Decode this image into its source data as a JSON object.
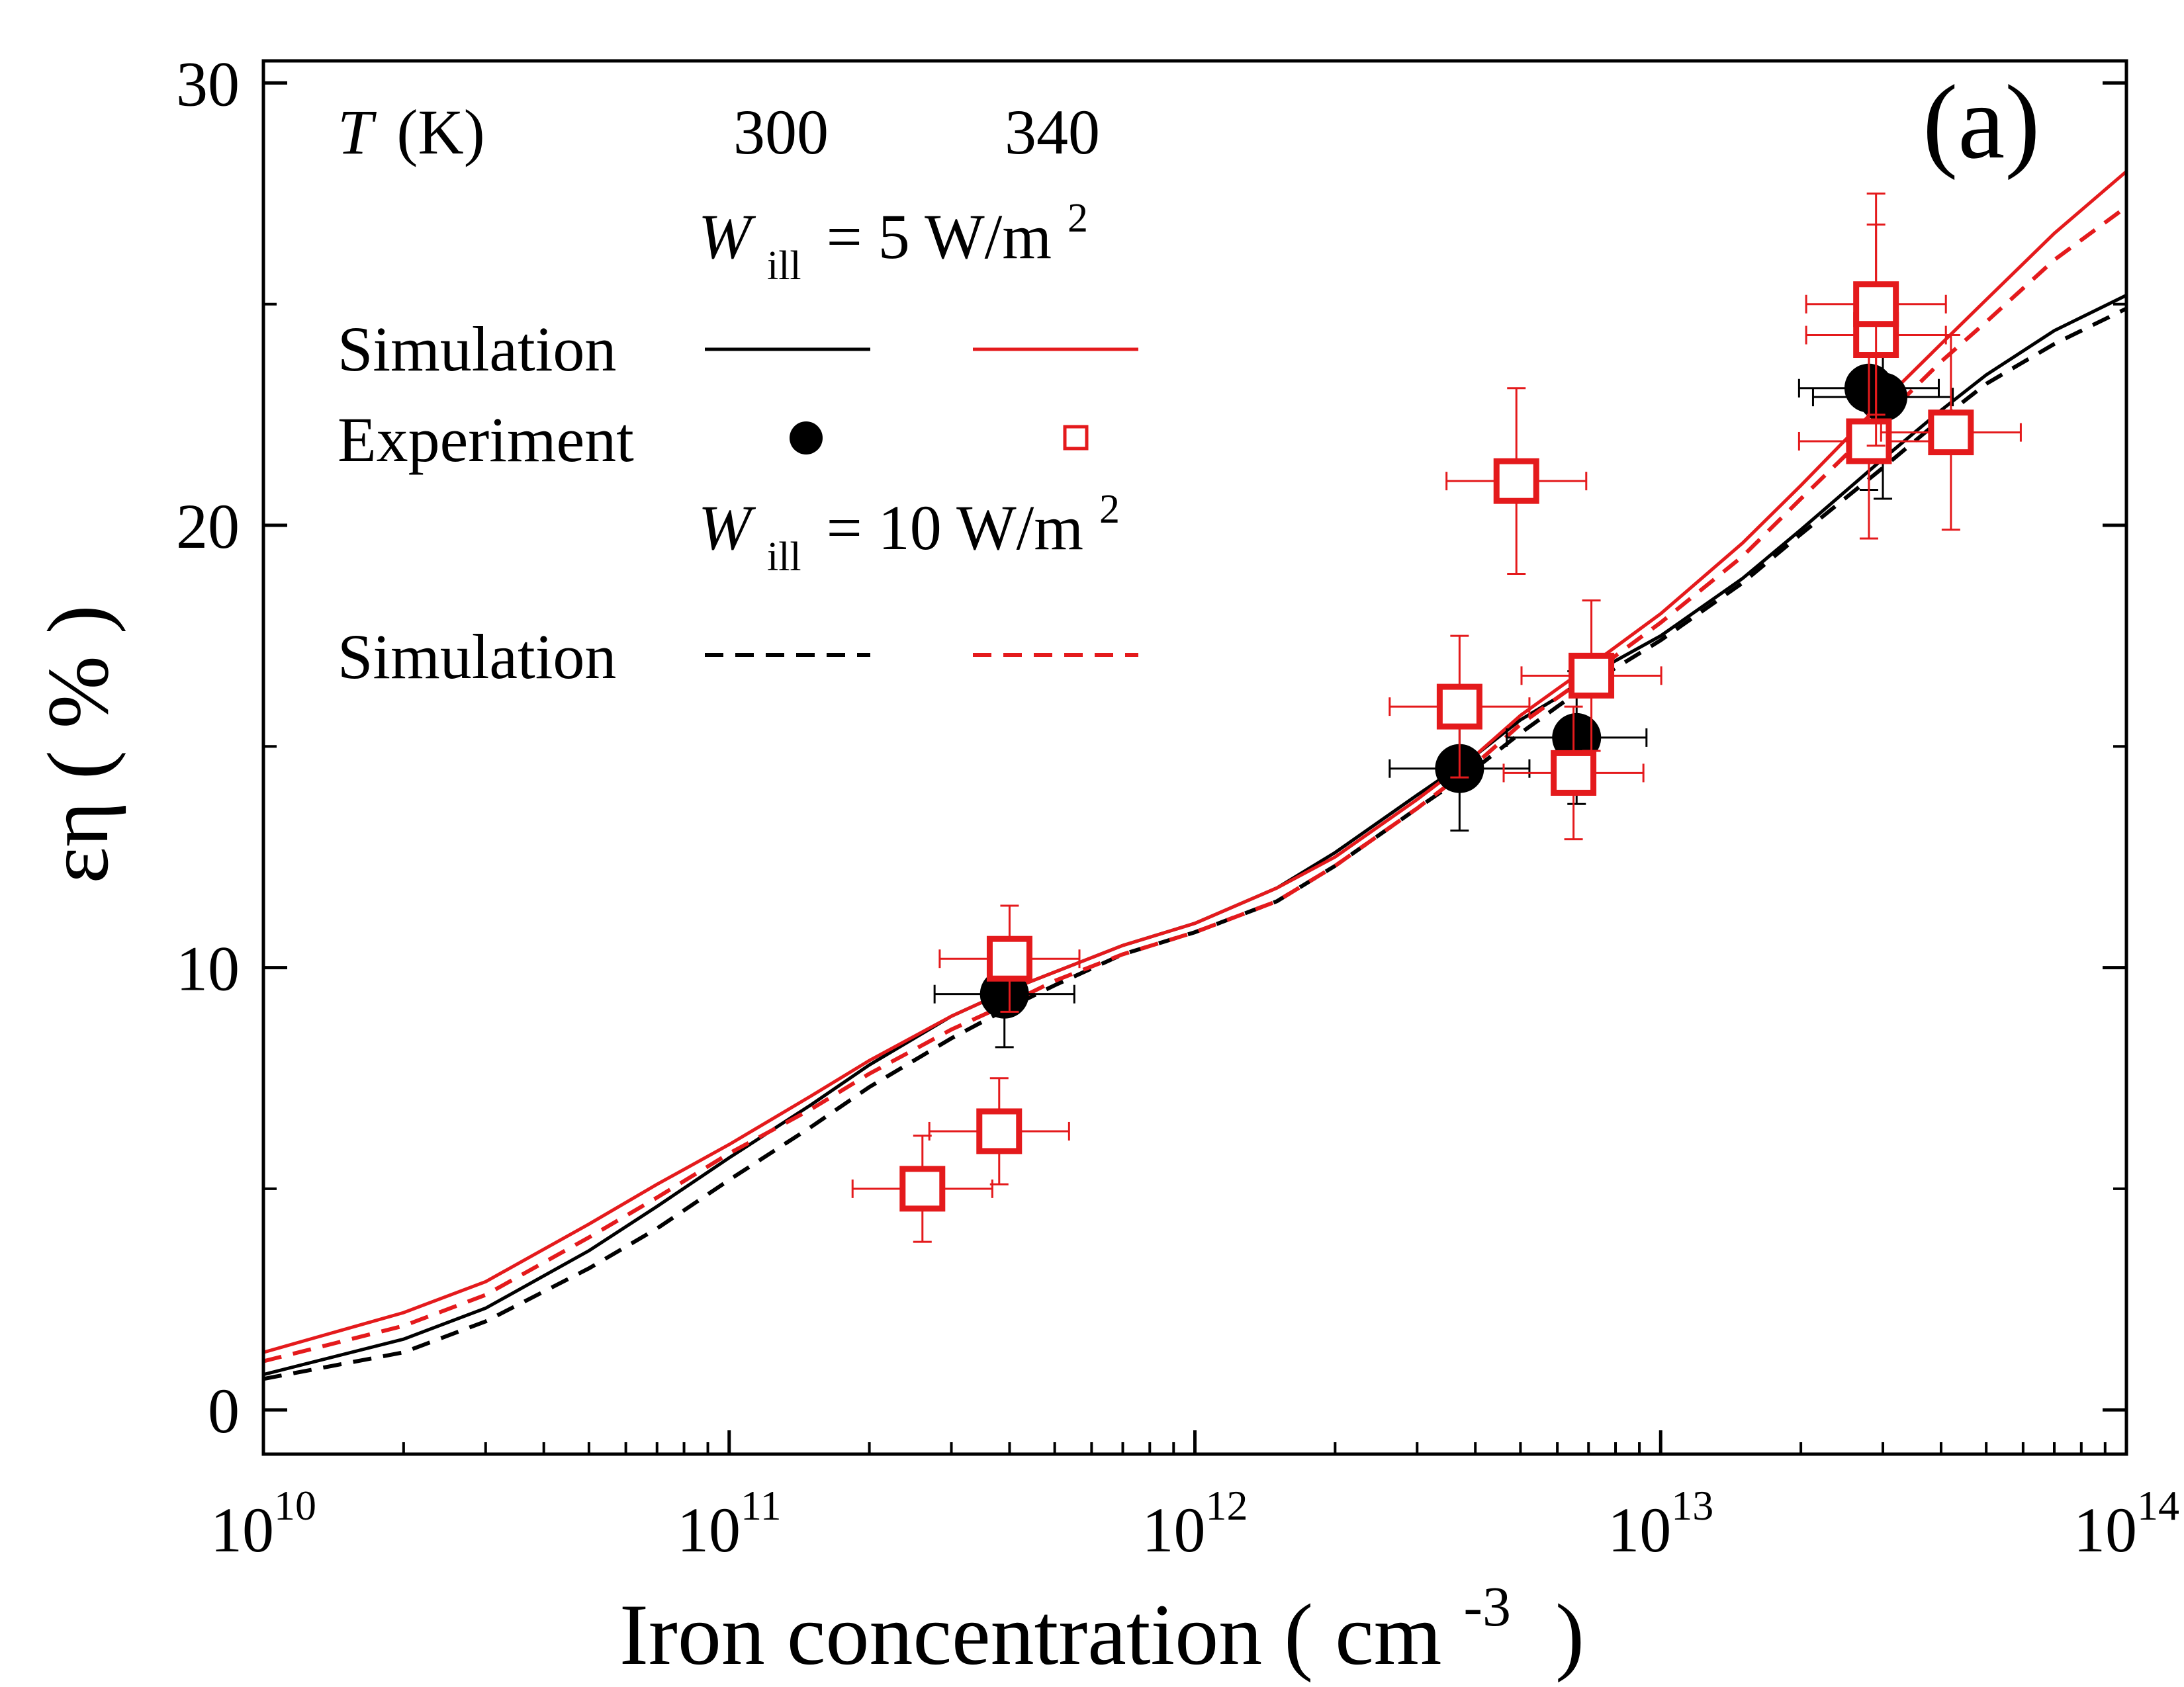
{
  "chart_data": {
    "type": "scatter",
    "panel_label": "(a)",
    "xlabel": "Iron concentration ( cm",
    "xlabel_exponent": "-3",
    "xlabel_close": ")",
    "ylabel": "εη ( % )",
    "x_scale": "log",
    "xlim": [
      10000000000.0,
      100000000000000.0
    ],
    "ylim": [
      -1,
      30.5
    ],
    "grid": false,
    "x_ticks": [
      {
        "value": 10000000000.0,
        "base": "10",
        "exp": "10"
      },
      {
        "value": 100000000000.0,
        "base": "10",
        "exp": "11"
      },
      {
        "value": 1000000000000.0,
        "base": "10",
        "exp": "12"
      },
      {
        "value": 10000000000000.0,
        "base": "10",
        "exp": "13"
      },
      {
        "value": 100000000000000.0,
        "base": "10",
        "exp": "14"
      }
    ],
    "y_ticks": [
      {
        "value": 0,
        "label": "0"
      },
      {
        "value": 10,
        "label": "10"
      },
      {
        "value": 20,
        "label": "20"
      },
      {
        "value": 30,
        "label": "30"
      }
    ],
    "legend": {
      "placement": "top-left",
      "t_label": "T",
      "t_unit": "(K)",
      "t_values": [
        "300",
        "340"
      ],
      "w5_symbol": "W",
      "w5_sub": "ill",
      "w5_text": "= 5 W/m",
      "w5_sup": "2",
      "w10_symbol": "W",
      "w10_sub": "ill",
      "w10_text": "= 10 W/m",
      "w10_sup": "2",
      "sim_label_1": "Simulation",
      "exp_label": "Experiment",
      "sim_label_2": "Simulation"
    },
    "colors": {
      "T300": "#000000",
      "T340": "#e41a1c"
    },
    "series": [
      {
        "T": 300,
        "W": 5,
        "kind": "simulation",
        "style": "solid",
        "color": "#000000",
        "x": [
          10000000000.0,
          20000000000.0,
          30000000000.0,
          50000000000.0,
          70000000000.0,
          100000000000.0,
          150000000000.0,
          200000000000.0,
          300000000000.0,
          400000000000.0,
          500000000000.0,
          700000000000.0,
          1000000000000.0,
          1500000000000.0,
          2000000000000.0,
          3000000000000.0,
          4000000000000.0,
          5000000000000.0,
          6000000000000.0,
          7000000000000.0,
          10000000000000.0,
          15000000000000.0,
          20000000000000.0,
          30000000000000.0,
          40000000000000.0,
          50000000000000.0,
          70000000000000.0,
          100000000000000.0
        ],
        "y": [
          0.8,
          1.6,
          2.3,
          3.6,
          4.6,
          5.7,
          6.9,
          7.8,
          8.9,
          9.5,
          9.9,
          10.5,
          11.0,
          11.8,
          12.6,
          13.9,
          14.8,
          15.6,
          16.1,
          16.6,
          17.5,
          18.8,
          19.9,
          21.5,
          22.6,
          23.4,
          24.4,
          25.2
        ]
      },
      {
        "T": 340,
        "W": 5,
        "kind": "simulation",
        "style": "solid",
        "color": "#e41a1c",
        "x": [
          10000000000.0,
          20000000000.0,
          30000000000.0,
          50000000000.0,
          70000000000.0,
          100000000000.0,
          150000000000.0,
          200000000000.0,
          300000000000.0,
          400000000000.0,
          500000000000.0,
          700000000000.0,
          1000000000000.0,
          1500000000000.0,
          2000000000000.0,
          3000000000000.0,
          4000000000000.0,
          5000000000000.0,
          6000000000000.0,
          7000000000000.0,
          10000000000000.0,
          15000000000000.0,
          20000000000000.0,
          30000000000000.0,
          40000000000000.0,
          50000000000000.0,
          70000000000000.0,
          100000000000000.0
        ],
        "y": [
          1.3,
          2.2,
          2.9,
          4.2,
          5.1,
          6.0,
          7.1,
          7.9,
          8.9,
          9.5,
          9.9,
          10.5,
          11.0,
          11.8,
          12.5,
          13.8,
          14.8,
          15.7,
          16.3,
          16.8,
          18.0,
          19.6,
          20.9,
          22.8,
          24.1,
          25.1,
          26.6,
          28.0
        ]
      },
      {
        "T": 300,
        "W": 10,
        "kind": "simulation",
        "style": "dashed",
        "color": "#000000",
        "x": [
          10000000000.0,
          20000000000.0,
          30000000000.0,
          50000000000.0,
          70000000000.0,
          100000000000.0,
          150000000000.0,
          200000000000.0,
          300000000000.0,
          400000000000.0,
          500000000000.0,
          700000000000.0,
          1000000000000.0,
          1500000000000.0,
          2000000000000.0,
          3000000000000.0,
          4000000000000.0,
          5000000000000.0,
          6000000000000.0,
          7000000000000.0,
          10000000000000.0,
          15000000000000.0,
          20000000000000.0,
          30000000000000.0,
          40000000000000.0,
          50000000000000.0,
          70000000000000.0,
          100000000000000.0
        ],
        "y": [
          0.7,
          1.3,
          2.0,
          3.2,
          4.1,
          5.2,
          6.4,
          7.3,
          8.4,
          9.1,
          9.6,
          10.3,
          10.8,
          11.5,
          12.3,
          13.6,
          14.5,
          15.3,
          15.9,
          16.4,
          17.4,
          18.7,
          19.8,
          21.3,
          22.4,
          23.2,
          24.1,
          24.9
        ]
      },
      {
        "T": 340,
        "W": 10,
        "kind": "simulation",
        "style": "dashed",
        "color": "#e41a1c",
        "x": [
          10000000000.0,
          20000000000.0,
          30000000000.0,
          50000000000.0,
          70000000000.0,
          100000000000.0,
          150000000000.0,
          200000000000.0,
          300000000000.0,
          400000000000.0,
          500000000000.0,
          700000000000.0,
          1000000000000.0,
          1500000000000.0,
          2000000000000.0,
          3000000000000.0,
          4000000000000.0,
          5000000000000.0,
          6000000000000.0,
          7000000000000.0,
          10000000000000.0,
          15000000000000.0,
          20000000000000.0,
          30000000000000.0,
          40000000000000.0,
          50000000000000.0,
          70000000000000.0,
          100000000000000.0
        ],
        "y": [
          1.1,
          1.9,
          2.6,
          3.9,
          4.8,
          5.8,
          6.8,
          7.6,
          8.6,
          9.2,
          9.7,
          10.3,
          10.8,
          11.5,
          12.3,
          13.6,
          14.6,
          15.5,
          16.1,
          16.6,
          17.8,
          19.3,
          20.6,
          22.4,
          23.7,
          24.6,
          26.0,
          27.2
        ]
      },
      {
        "T": 300,
        "kind": "experiment",
        "marker": "filled-circle",
        "color": "#000000",
        "points": [
          {
            "x": 390000000000.0,
            "y": 9.4,
            "xerr": 0.15,
            "yerr": 1.2
          },
          {
            "x": 3700000000000.0,
            "y": 14.5,
            "xerr": 0.15,
            "yerr": 1.4
          },
          {
            "x": 6600000000000.0,
            "y": 15.2,
            "xerr": 0.15,
            "yerr": 1.5
          },
          {
            "x": 28000000000000.0,
            "y": 23.1,
            "xerr": 0.15,
            "yerr": 2.3
          },
          {
            "x": 30000000000000.0,
            "y": 22.9,
            "xerr": 0.15,
            "yerr": 2.3
          }
        ]
      },
      {
        "T": 340,
        "kind": "experiment",
        "marker": "open-square",
        "color": "#e41a1c",
        "points": [
          {
            "x": 260000000000.0,
            "y": 5.0,
            "xerr": 0.15,
            "yerr": 1.2
          },
          {
            "x": 380000000000.0,
            "y": 6.3,
            "xerr": 0.15,
            "yerr": 1.2
          },
          {
            "x": 400000000000.0,
            "y": 10.2,
            "xerr": 0.15,
            "yerr": 1.2
          },
          {
            "x": 3700000000000.0,
            "y": 15.9,
            "xerr": 0.15,
            "yerr": 1.6
          },
          {
            "x": 4900000000000.0,
            "y": 21.0,
            "xerr": 0.15,
            "yerr": 2.1
          },
          {
            "x": 6500000000000.0,
            "y": 14.4,
            "xerr": 0.15,
            "yerr": 1.5
          },
          {
            "x": 7100000000000.0,
            "y": 16.6,
            "xerr": 0.15,
            "yerr": 1.7
          },
          {
            "x": 28000000000000.0,
            "y": 21.9,
            "xerr": 0.15,
            "yerr": 2.2
          },
          {
            "x": 29000000000000.0,
            "y": 24.3,
            "xerr": 0.15,
            "yerr": 2.5
          },
          {
            "x": 29000000000000.0,
            "y": 25.0,
            "xerr": 0.15,
            "yerr": 2.5
          },
          {
            "x": 42000000000000.0,
            "y": 22.1,
            "xerr": 0.15,
            "yerr": 2.2
          }
        ]
      }
    ]
  }
}
